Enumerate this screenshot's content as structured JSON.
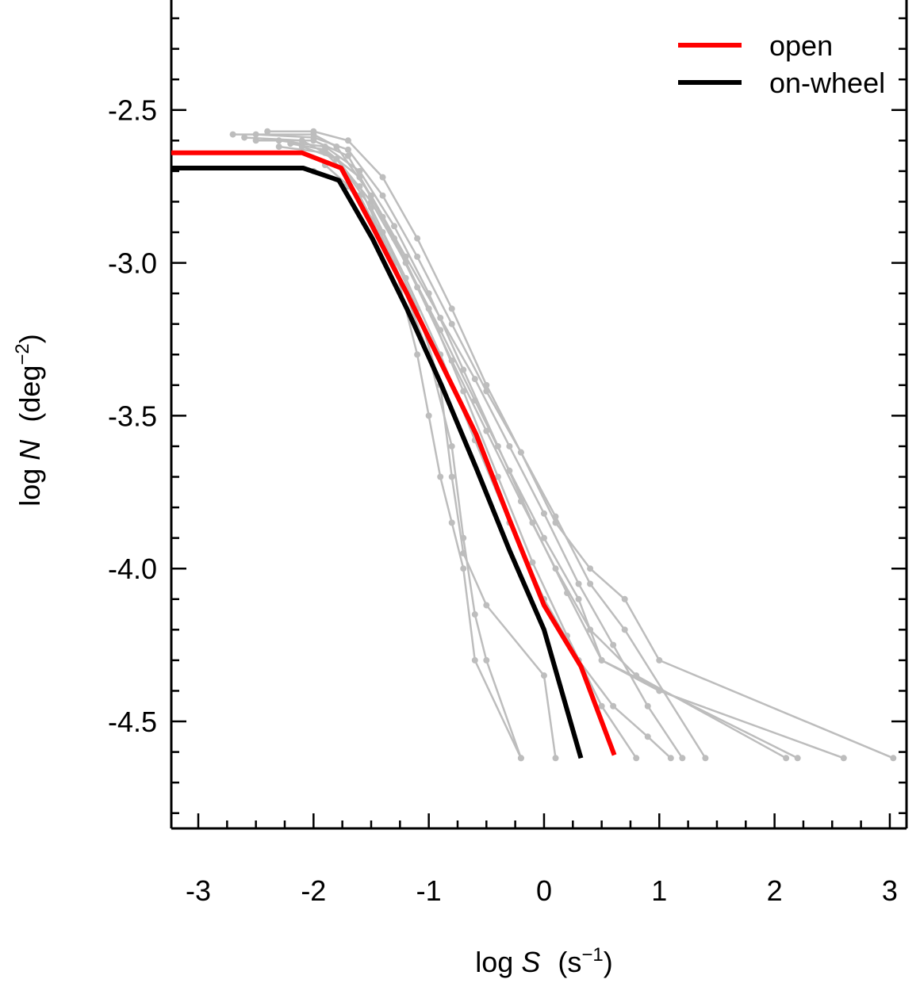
{
  "chart_data": {
    "type": "line",
    "x_label": {
      "prefix": "log",
      "var": "S",
      "unit": "(s",
      "exp": "−1",
      "close": ")"
    },
    "y_label": {
      "prefix": "log",
      "var": "N",
      "unit": "(deg",
      "exp": "−2",
      "close": ")"
    },
    "xlim": [
      -3.234,
      3.145
    ],
    "ylim": [
      -4.85,
      -2.148
    ],
    "xticks": [
      -3,
      -2,
      -1,
      0,
      1,
      2,
      3
    ],
    "yticks": [
      -2.5,
      -3.0,
      -3.5,
      -4.0,
      -4.5
    ],
    "xticks_minor": [
      -3.25,
      -2.75,
      -2.5,
      -2.25,
      -1.75,
      -1.5,
      -1.25,
      -0.75,
      -0.5,
      -0.25,
      0.25,
      0.5,
      0.75,
      1.25,
      1.5,
      1.75,
      2.25,
      2.5,
      2.75
    ],
    "yticks_minor": [
      -2.2,
      -2.3,
      -2.4,
      -2.6,
      -2.7,
      -2.8,
      -2.9,
      -3.1,
      -3.2,
      -3.3,
      -3.4,
      -3.6,
      -3.7,
      -3.8,
      -3.9,
      -4.1,
      -4.2,
      -4.3,
      -4.4,
      -4.6,
      -4.7,
      -4.8
    ],
    "legend": "top-right",
    "simulation_color": "#bdbdbd",
    "simulations": [
      {
        "x": [
          -2.7,
          -2.0,
          -1.8,
          -1.5,
          -1.2,
          -0.9,
          -0.6,
          -0.3,
          0,
          0.3,
          0.6,
          0.9,
          1.2
        ],
        "values": [
          -2.58,
          -2.58,
          -2.62,
          -2.78,
          -2.98,
          -3.18,
          -3.38,
          -3.6,
          -3.82,
          -4.05,
          -4.25,
          -4.45,
          -4.62
        ]
      },
      {
        "x": [
          -2.5,
          -2.0,
          -1.7,
          -1.4,
          -1.1,
          -0.8,
          -0.5,
          -0.2,
          0.1,
          0.4,
          0.8,
          2.1
        ],
        "values": [
          -2.6,
          -2.6,
          -2.65,
          -2.85,
          -3.08,
          -3.32,
          -3.55,
          -3.78,
          -4.0,
          -4.2,
          -4.35,
          -4.62
        ]
      },
      {
        "x": [
          -2.3,
          -1.9,
          -1.6,
          -1.3,
          -1.0,
          -0.8,
          -0.7,
          -0.6,
          -0.5,
          -0.2
        ],
        "values": [
          -2.62,
          -2.64,
          -2.75,
          -3.0,
          -3.3,
          -3.6,
          -3.9,
          -4.15,
          -4.3,
          -4.62
        ]
      },
      {
        "x": [
          -2.6,
          -2.1,
          -1.8,
          -1.5,
          -1.2,
          -0.9,
          -0.6,
          -0.3,
          0,
          0.3,
          0.5,
          1.0,
          2.6
        ],
        "values": [
          -2.59,
          -2.6,
          -2.66,
          -2.8,
          -3.0,
          -3.22,
          -3.45,
          -3.68,
          -3.9,
          -4.1,
          -4.3,
          -4.4,
          -4.62
        ]
      },
      {
        "x": [
          -2.4,
          -2.0,
          -1.7,
          -1.4,
          -1.1,
          -0.8,
          -0.5,
          -0.2,
          0.1,
          0.4,
          0.7,
          1.0,
          3.03
        ],
        "values": [
          -2.57,
          -2.57,
          -2.6,
          -2.72,
          -2.92,
          -3.15,
          -3.4,
          -3.62,
          -3.85,
          -4.0,
          -4.1,
          -4.3,
          -4.62
        ]
      },
      {
        "x": [
          -2.2,
          -1.9,
          -1.6,
          -1.3,
          -1.0,
          -0.7,
          -0.4,
          -0.1,
          0.2,
          0.5,
          0.8
        ],
        "values": [
          -2.61,
          -2.63,
          -2.72,
          -2.92,
          -3.15,
          -3.42,
          -3.7,
          -3.98,
          -4.22,
          -4.45,
          -4.62
        ]
      },
      {
        "x": [
          -2.0,
          -1.7,
          -1.4,
          -1.1,
          -0.9,
          -0.8,
          -0.7,
          -0.5,
          0,
          0.1
        ],
        "values": [
          -2.7,
          -2.75,
          -2.9,
          -3.15,
          -3.4,
          -3.7,
          -3.95,
          -4.12,
          -4.35,
          -4.62
        ]
      },
      {
        "x": [
          -2.5,
          -2.0,
          -1.7,
          -1.4,
          -1.1,
          -0.8,
          -0.5,
          -0.2,
          0.1,
          0.4,
          0.7,
          1.4
        ],
        "values": [
          -2.58,
          -2.59,
          -2.63,
          -2.78,
          -2.98,
          -3.2,
          -3.42,
          -3.62,
          -3.83,
          -4.05,
          -4.2,
          -4.62
        ]
      },
      {
        "x": [
          -2.1,
          -1.8,
          -1.5,
          -1.2,
          -0.9,
          -0.6,
          -0.3,
          0,
          0.3,
          0.6,
          0.9,
          1.1
        ],
        "values": [
          -2.62,
          -2.66,
          -2.82,
          -3.05,
          -3.3,
          -3.58,
          -3.85,
          -4.1,
          -4.3,
          -4.45,
          -4.55,
          -4.62
        ]
      },
      {
        "x": [
          -2.3,
          -1.9,
          -1.6,
          -1.3,
          -1.0,
          -0.7,
          -0.4,
          -0.1,
          0.2,
          0.5,
          2.2
        ],
        "values": [
          -2.6,
          -2.62,
          -2.7,
          -2.88,
          -3.1,
          -3.35,
          -3.6,
          -3.85,
          -4.08,
          -4.3,
          -4.62
        ]
      },
      {
        "x": [
          -1.9,
          -1.6,
          -1.3,
          -1.1,
          -1.0,
          -0.9,
          -0.8,
          -0.7,
          -0.6,
          -0.2
        ],
        "values": [
          -2.68,
          -2.78,
          -3.0,
          -3.3,
          -3.5,
          -3.7,
          -3.85,
          -4.0,
          -4.3,
          -4.62
        ]
      }
    ],
    "series": [
      {
        "name": "open",
        "color": "#ff0000",
        "x": [
          -3.234,
          -2.1,
          -1.76,
          -1.49,
          -1.19,
          -0.89,
          -0.59,
          -0.3,
          0,
          0.32,
          0.61
        ],
        "values": [
          -2.64,
          -2.64,
          -2.69,
          -2.88,
          -3.1,
          -3.33,
          -3.56,
          -3.84,
          -4.12,
          -4.32,
          -4.61
        ]
      },
      {
        "name": "on-wheel",
        "color": "#000000",
        "x": [
          -3.234,
          -2.09,
          -1.78,
          -1.49,
          -1.19,
          -0.89,
          -0.59,
          -0.3,
          0,
          0.32
        ],
        "values": [
          -2.69,
          -2.69,
          -2.73,
          -2.92,
          -3.15,
          -3.4,
          -3.67,
          -3.94,
          -4.2,
          -4.62
        ]
      }
    ]
  }
}
